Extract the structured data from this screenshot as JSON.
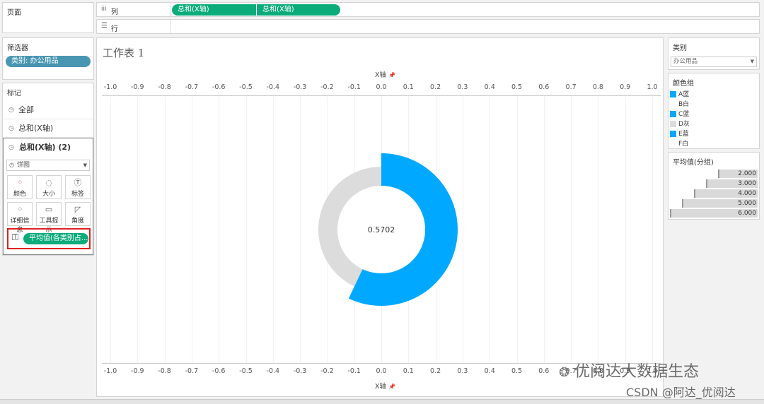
{
  "shelves": {
    "pages_label": "页面",
    "columns_label": "列",
    "rows_label": "行",
    "column_pills": [
      "总和(X轴)",
      "总和(X轴)"
    ]
  },
  "filters": {
    "title": "筛选器",
    "pill": "类别: 办公用品"
  },
  "marks": {
    "title": "标记",
    "cards": [
      "全部",
      "总和(X轴)",
      "总和(X轴) (2)"
    ],
    "mark_type": "饼图",
    "buttons": [
      "颜色",
      "大小",
      "标签",
      "详细信息",
      "工具提示",
      "角度"
    ],
    "field_pill": "平均值(各类别占..."
  },
  "worksheet": {
    "title": "工作表 1"
  },
  "chart_data": {
    "type": "pie",
    "xlabel": "X轴",
    "x_ticks": [
      "-1.0",
      "-0.9",
      "-0.8",
      "-0.7",
      "-0.6",
      "-0.5",
      "-0.4",
      "-0.3",
      "-0.2",
      "-0.1",
      "0.0",
      "0.1",
      "0.2",
      "0.3",
      "0.4",
      "0.5",
      "0.6",
      "0.7",
      "0.8",
      "0.9",
      "1.0"
    ],
    "xlim": [
      -1.0,
      1.0
    ],
    "center_label": "0.5702",
    "value": 0.5702,
    "colors": {
      "filled": "#00a8ff",
      "remainder": "#dcdcdc"
    }
  },
  "right": {
    "category": {
      "title": "类别",
      "value": "办公用品"
    },
    "color_legend": {
      "title": "颜色组",
      "items": [
        {
          "label": "A蓝",
          "color": "#00a8ff"
        },
        {
          "label": "B白",
          "color": "#ffffff"
        },
        {
          "label": "C蓝",
          "color": "#00a8ff"
        },
        {
          "label": "D灰",
          "color": "#dcdcdc"
        },
        {
          "label": "E蓝",
          "color": "#00a8ff"
        },
        {
          "label": "F白",
          "color": "#ffffff"
        }
      ]
    },
    "size_legend": {
      "title": "平均值(分组)",
      "items": [
        {
          "label": "2.000",
          "value": 2
        },
        {
          "label": "3.000",
          "value": 3
        },
        {
          "label": "4.000",
          "value": 4
        },
        {
          "label": "5.000",
          "value": 5
        },
        {
          "label": "6.000",
          "value": 6
        }
      ]
    }
  },
  "watermark": {
    "line1": "优阅达大数据生态",
    "line2": "CSDN @阿达_优阅达"
  },
  "colors": {
    "pill_green": "#0cab7a",
    "pill_teal": "#4996b2",
    "accent": "#00a8ff",
    "highlight_border": "#e02020"
  }
}
